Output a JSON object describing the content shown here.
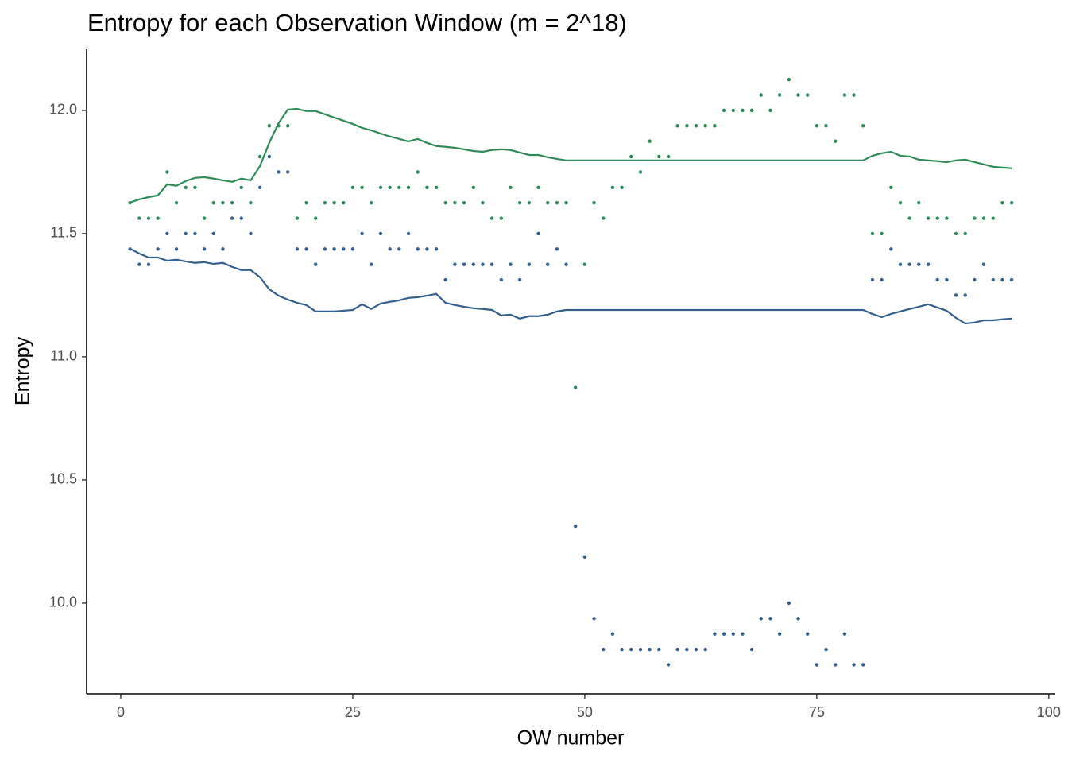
{
  "chart_data": {
    "type": "line",
    "title": "Entropy for each Observation Window (m = 2^18)",
    "x_label": "OW number",
    "y_label": "Entropy",
    "x": [
      1,
      2,
      3,
      4,
      5,
      6,
      7,
      8,
      9,
      10,
      11,
      12,
      13,
      14,
      15,
      16,
      17,
      18,
      19,
      20,
      21,
      22,
      23,
      24,
      25,
      26,
      27,
      28,
      29,
      30,
      31,
      32,
      33,
      34,
      35,
      36,
      37,
      38,
      39,
      40,
      41,
      42,
      43,
      44,
      45,
      46,
      47,
      48,
      49,
      50,
      51,
      52,
      53,
      54,
      55,
      56,
      57,
      58,
      59,
      60,
      61,
      62,
      63,
      64,
      65,
      66,
      67,
      68,
      69,
      70,
      71,
      72,
      73,
      74,
      75,
      76,
      77,
      78,
      79,
      80,
      81,
      82,
      83,
      84,
      85,
      86,
      87,
      88,
      89,
      90,
      91,
      92,
      93,
      94,
      95,
      96
    ],
    "series": [
      {
        "mark": "point",
        "color": "#2e8b57",
        "values": [
          11.625,
          11.5625,
          11.5625,
          11.5625,
          11.75,
          11.625,
          11.6875,
          11.6875,
          11.5625,
          11.625,
          11.625,
          11.625,
          11.6875,
          11.625,
          11.8125,
          11.9375,
          11.9375,
          11.9375,
          11.5625,
          11.625,
          11.5625,
          11.625,
          11.625,
          11.625,
          11.6875,
          11.6875,
          11.625,
          11.6875,
          11.6875,
          11.6875,
          11.6875,
          11.75,
          11.6875,
          11.6875,
          11.625,
          11.625,
          11.625,
          11.6875,
          11.625,
          11.5625,
          11.5625,
          11.6875,
          11.625,
          11.625,
          11.6875,
          11.625,
          11.625,
          11.625,
          10.875,
          11.375,
          11.625,
          11.5625,
          11.6875,
          11.6875,
          11.8125,
          11.75,
          11.875,
          11.8125,
          11.8125,
          11.9375,
          11.9375,
          11.9375,
          11.9375,
          11.9375,
          12,
          12,
          12,
          12,
          12.0625,
          12,
          12.0625,
          12.125,
          12.0625,
          12.0625,
          11.9375,
          11.9375,
          11.875,
          12.0625,
          12.0625,
          11.9375,
          11.5,
          11.5,
          11.6875,
          11.625,
          11.5625,
          11.625,
          11.5625,
          11.5625,
          11.5625,
          11.5,
          11.5,
          11.5625,
          11.5625,
          11.5625,
          11.625,
          11.625
        ]
      },
      {
        "mark": "point",
        "color": "#355f8d",
        "values": [
          11.4375,
          11.375,
          11.375,
          11.4375,
          11.5,
          11.4375,
          11.5,
          11.5,
          11.4375,
          11.5,
          11.4375,
          11.5625,
          11.5625,
          11.5,
          11.6875,
          11.8125,
          11.75,
          11.75,
          11.4375,
          11.4375,
          11.375,
          11.4375,
          11.4375,
          11.4375,
          11.4375,
          11.5,
          11.375,
          11.5,
          11.4375,
          11.4375,
          11.5,
          11.4375,
          11.4375,
          11.4375,
          11.3125,
          11.375,
          11.375,
          11.375,
          11.375,
          11.375,
          11.3125,
          11.375,
          11.3125,
          11.375,
          11.5,
          11.375,
          11.4375,
          11.375,
          10.3125,
          10.1875,
          9.9375,
          9.8125,
          9.875,
          9.8125,
          9.8125,
          9.8125,
          9.8125,
          9.8125,
          9.75,
          9.8125,
          9.8125,
          9.8125,
          9.8125,
          9.875,
          9.875,
          9.875,
          9.875,
          9.8125,
          9.9375,
          9.9375,
          9.875,
          10,
          9.9375,
          9.875,
          9.75,
          9.8125,
          9.75,
          9.875,
          9.75,
          9.75,
          11.3125,
          11.3125,
          11.4375,
          11.375,
          11.375,
          11.375,
          11.375,
          11.3125,
          11.3125,
          11.25,
          11.25,
          11.3125,
          11.375,
          11.3125,
          11.3125,
          11.3125
        ]
      },
      {
        "mark": "line",
        "color": "#2e8b57",
        "values": [
          11.626,
          11.639,
          11.648,
          11.655,
          11.7,
          11.694,
          11.713,
          11.726,
          11.729,
          11.723,
          11.716,
          11.71,
          11.723,
          11.716,
          11.774,
          11.868,
          11.948,
          12.003,
          12.006,
          11.997,
          11.997,
          11.984,
          11.971,
          11.958,
          11.945,
          11.929,
          11.919,
          11.906,
          11.894,
          11.884,
          11.874,
          11.884,
          11.868,
          11.855,
          11.852,
          11.848,
          11.842,
          11.835,
          11.832,
          11.839,
          11.842,
          11.839,
          11.829,
          11.819,
          11.819,
          11.81,
          11.803,
          11.797,
          11.797,
          11.797,
          11.797,
          11.797,
          11.797,
          11.797,
          11.797,
          11.797,
          11.797,
          11.797,
          11.797,
          11.797,
          11.797,
          11.797,
          11.797,
          11.797,
          11.797,
          11.797,
          11.797,
          11.797,
          11.797,
          11.797,
          11.797,
          11.797,
          11.797,
          11.797,
          11.797,
          11.797,
          11.797,
          11.797,
          11.797,
          11.797,
          11.816,
          11.826,
          11.832,
          11.816,
          11.813,
          11.8,
          11.797,
          11.794,
          11.79,
          11.797,
          11.8,
          11.79,
          11.781,
          11.771,
          11.768,
          11.765
        ]
      },
      {
        "mark": "line",
        "color": "#355f8d",
        "values": [
          11.439,
          11.419,
          11.403,
          11.403,
          11.39,
          11.394,
          11.387,
          11.381,
          11.384,
          11.377,
          11.381,
          11.365,
          11.352,
          11.352,
          11.323,
          11.274,
          11.248,
          11.232,
          11.219,
          11.21,
          11.184,
          11.184,
          11.184,
          11.187,
          11.19,
          11.213,
          11.194,
          11.216,
          11.223,
          11.229,
          11.239,
          11.242,
          11.248,
          11.255,
          11.219,
          11.21,
          11.203,
          11.197,
          11.194,
          11.19,
          11.168,
          11.171,
          11.155,
          11.165,
          11.165,
          11.171,
          11.184,
          11.19,
          11.19,
          11.19,
          11.19,
          11.19,
          11.19,
          11.19,
          11.19,
          11.19,
          11.19,
          11.19,
          11.19,
          11.19,
          11.19,
          11.19,
          11.19,
          11.19,
          11.19,
          11.19,
          11.19,
          11.19,
          11.19,
          11.19,
          11.19,
          11.19,
          11.19,
          11.19,
          11.19,
          11.19,
          11.19,
          11.19,
          11.19,
          11.19,
          11.174,
          11.161,
          11.174,
          11.184,
          11.194,
          11.203,
          11.213,
          11.2,
          11.187,
          11.158,
          11.135,
          11.139,
          11.148,
          11.148,
          11.152,
          11.155
        ]
      }
    ],
    "xlim": [
      -3.68,
      100.7
    ],
    "ylim": [
      9.632,
      12.248
    ],
    "xticks": [
      0,
      25,
      50,
      75,
      100
    ],
    "yticks": [
      {
        "value": 10,
        "label": "10.0"
      },
      {
        "value": 10.5,
        "label": "10.5"
      },
      {
        "value": 11,
        "label": "11.0"
      },
      {
        "value": 11.5,
        "label": "11.5"
      },
      {
        "value": 12,
        "label": "12.0"
      }
    ],
    "grid": false
  }
}
